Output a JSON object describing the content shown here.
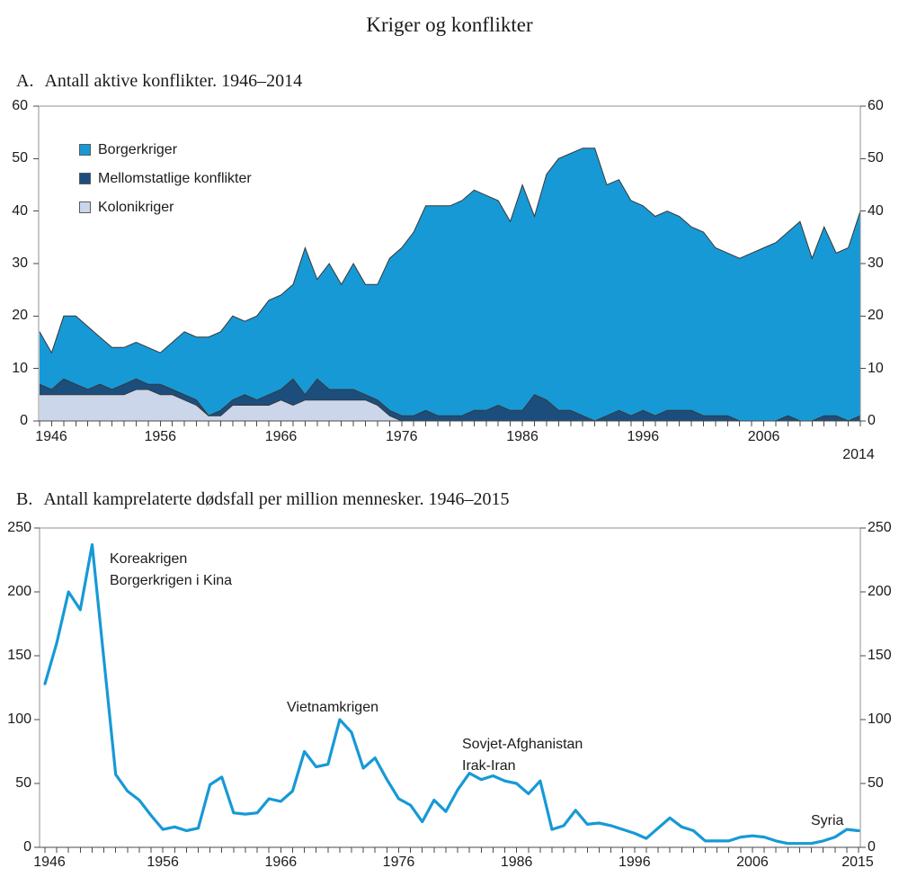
{
  "title": "Kriger og konflikter",
  "chart_data": [
    {
      "id": "A",
      "type": "area",
      "stacked": true,
      "label": "A.",
      "heading": "Antall aktive konflikter. 1946–2014",
      "title": "A. Antall aktive konflikter. 1946–2014",
      "start_year": 1946,
      "end_year": 2014,
      "ylim": [
        0,
        60
      ],
      "y_ticks": [
        0,
        10,
        20,
        30,
        40,
        50,
        60
      ],
      "x_tick_years": [
        1946,
        1956,
        1966,
        1976,
        1986,
        1996,
        2006
      ],
      "x_end_label": "2014",
      "grid": false,
      "legend_position": "top-left-inside",
      "frame_color": "#909090",
      "axis_color": "#4a4a4a",
      "outline_color": "#383838",
      "series": [
        {
          "name": "Kolonikriger",
          "color": "#CBD6EB",
          "values": [
            5,
            5,
            5,
            5,
            5,
            5,
            5,
            5,
            6,
            6,
            5,
            5,
            4,
            3,
            1,
            1,
            3,
            3,
            3,
            3,
            4,
            3,
            4,
            4,
            4,
            4,
            4,
            4,
            3,
            1,
            0,
            0,
            0,
            0,
            0,
            0,
            0,
            0,
            0,
            0,
            0,
            0,
            0,
            0,
            0,
            0,
            0,
            0,
            0,
            0,
            0,
            0,
            0,
            0,
            0,
            0,
            0,
            0,
            0,
            0,
            0,
            0,
            0,
            0,
            0,
            0,
            0,
            0,
            0
          ]
        },
        {
          "name": "Mellomstatlige konflikter",
          "color": "#1C4E7D",
          "values": [
            2,
            1,
            3,
            2,
            1,
            2,
            1,
            2,
            2,
            1,
            2,
            1,
            1,
            1,
            0,
            1,
            1,
            2,
            1,
            2,
            2,
            5,
            1,
            4,
            2,
            2,
            2,
            1,
            1,
            1,
            1,
            1,
            2,
            1,
            1,
            1,
            2,
            2,
            3,
            2,
            2,
            5,
            4,
            2,
            2,
            1,
            0,
            1,
            2,
            1,
            2,
            1,
            2,
            2,
            2,
            1,
            1,
            1,
            0,
            0,
            0,
            0,
            1,
            0,
            0,
            1,
            1,
            0,
            1
          ]
        },
        {
          "name": "Borgerkriger",
          "color": "#1799D6",
          "values": [
            10,
            7,
            12,
            13,
            12,
            9,
            8,
            7,
            7,
            7,
            6,
            9,
            12,
            12,
            15,
            15,
            16,
            14,
            16,
            18,
            18,
            18,
            28,
            19,
            24,
            20,
            24,
            21,
            22,
            29,
            32,
            35,
            39,
            40,
            40,
            41,
            42,
            41,
            39,
            36,
            43,
            34,
            43,
            48,
            49,
            51,
            52,
            44,
            44,
            41,
            39,
            38,
            38,
            37,
            35,
            35,
            32,
            31,
            31,
            32,
            33,
            34,
            35,
            38,
            31,
            36,
            31,
            33,
            39
          ]
        }
      ],
      "legend_order": [
        "Borgerkriger",
        "Mellomstatlige konflikter",
        "Kolonikriger"
      ]
    },
    {
      "id": "B",
      "type": "line",
      "label": "B.",
      "heading": "Antall kamprelaterte dødsfall per million mennesker. 1946–2015",
      "title": "B. Antall kamprelaterte dødsfall per million mennesker. 1946–2015",
      "start_year": 1946,
      "end_year": 2015,
      "ylim": [
        0,
        250
      ],
      "y_ticks": [
        0,
        50,
        100,
        150,
        200,
        250
      ],
      "x_tick_years": [
        1946,
        1956,
        1966,
        1976,
        1986,
        1996,
        2006
      ],
      "x_end_label": "2015",
      "grid": false,
      "line_color": "#1799D6",
      "frame_color": "#909090",
      "axis_color": "#4a4a4a",
      "values": [
        128,
        160,
        200,
        186,
        237,
        147,
        57,
        44,
        37,
        25,
        14,
        16,
        13,
        15,
        49,
        55,
        27,
        26,
        27,
        38,
        36,
        44,
        75,
        63,
        65,
        100,
        90,
        62,
        70,
        53,
        38,
        33,
        20,
        37,
        28,
        45,
        58,
        53,
        56,
        52,
        50,
        42,
        52,
        14,
        17,
        29,
        18,
        19,
        17,
        14,
        11,
        7,
        15,
        23,
        16,
        13,
        5,
        5,
        5,
        8,
        9,
        8,
        5,
        3,
        3,
        3,
        5,
        8,
        14,
        13
      ],
      "annotations": [
        {
          "id": "korea",
          "lines": [
            "Koreakrigen",
            "Borgerkrigen i Kina"
          ]
        },
        {
          "id": "vietnam",
          "lines": [
            "Vietnamkrigen"
          ]
        },
        {
          "id": "sovjet",
          "lines": [
            "Sovjet-Afghanistan",
            "Irak-Iran"
          ]
        },
        {
          "id": "syria",
          "lines": [
            "Syria"
          ]
        }
      ]
    }
  ]
}
